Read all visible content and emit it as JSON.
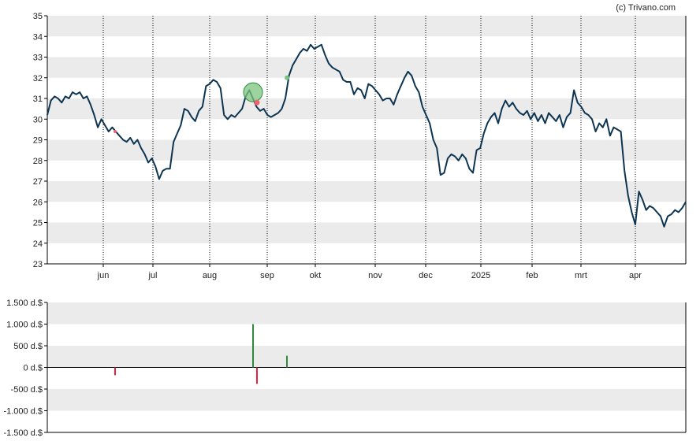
{
  "credit": "(c) Trivano.com",
  "colors": {
    "price_line": "#0d3552",
    "band": "#ebebeb",
    "axis": "#000000",
    "grid_dash": "#000000",
    "buy": "#2e8b3e",
    "sell": "#e0233f",
    "buy_marker": "#7bc47f",
    "sell_marker": "#f06070"
  },
  "chart_data": [
    {
      "type": "line",
      "title": "",
      "xlabel": "",
      "ylabel": "",
      "ylim": [
        23,
        35
      ],
      "y_ticks": [
        "23",
        "24",
        "25",
        "26",
        "27",
        "28",
        "29",
        "30",
        "31",
        "32",
        "33",
        "34",
        "35"
      ],
      "x_ticks": [
        "jun",
        "jul",
        "aug",
        "sep",
        "okt",
        "nov",
        "dec",
        "2025",
        "feb",
        "mrt",
        "apr"
      ],
      "grid": "alternating horizontal bands, dotted vertical lines at month ticks",
      "series": [
        {
          "values": [
            30.2,
            30.9,
            31.1,
            31.0,
            30.8,
            31.1,
            31.0,
            31.3,
            31.2,
            31.3,
            31.0,
            31.1,
            30.7,
            30.2,
            29.6,
            30.0,
            29.7,
            29.4,
            29.6,
            29.4,
            29.2,
            29.0,
            28.9,
            29.1,
            28.8,
            29.0,
            28.6,
            28.3,
            27.9,
            28.1,
            27.7,
            27.1,
            27.5,
            27.6,
            27.6,
            28.9,
            29.3,
            29.7,
            30.5,
            30.4,
            30.1,
            29.9,
            30.4,
            30.6,
            31.6,
            31.7,
            31.9,
            31.8,
            31.5,
            30.2,
            30.0,
            30.2,
            30.1,
            30.3,
            30.5,
            31.1,
            31.4,
            31.0,
            30.6,
            30.4,
            30.5,
            30.2,
            30.1,
            30.2,
            30.3,
            30.5,
            31.0,
            32.1,
            32.6,
            32.9,
            33.2,
            33.4,
            33.3,
            33.6,
            33.4,
            33.5,
            33.6,
            33.1,
            32.7,
            32.5,
            32.4,
            32.3,
            31.9,
            31.8,
            31.8,
            31.2,
            31.5,
            31.4,
            31.0,
            31.7,
            31.6,
            31.4,
            31.2,
            30.9,
            31.0,
            31.0,
            30.7,
            31.2,
            31.6,
            32.0,
            32.3,
            32.1,
            31.6,
            31.3,
            30.6,
            30.2,
            29.8,
            29.0,
            28.6,
            27.3,
            27.4,
            28.1,
            28.3,
            28.2,
            28.0,
            28.3,
            28.1,
            27.6,
            27.4,
            28.5,
            28.6,
            29.3,
            29.8,
            30.1,
            30.3,
            29.8,
            30.5,
            30.9,
            30.6,
            30.8,
            30.5,
            30.3,
            30.2,
            30.4,
            30.0,
            30.3,
            29.9,
            30.2,
            29.8,
            30.3,
            30.1,
            29.9,
            30.2,
            29.6,
            30.1,
            30.3,
            31.4,
            30.8,
            30.6,
            30.3,
            30.2,
            30.0,
            29.4,
            29.8,
            29.6,
            30.0,
            29.2,
            29.6,
            29.5,
            29.4,
            27.5,
            26.3,
            25.5,
            24.9,
            26.5,
            26.1,
            25.6,
            25.8,
            25.7,
            25.5,
            25.3,
            24.8,
            25.3,
            25.4,
            25.6,
            25.5,
            25.7,
            26.0
          ]
        }
      ],
      "markers": [
        {
          "kind": "buy",
          "position": "late August, around 31.2"
        },
        {
          "kind": "sell",
          "position": "late August, around 30.8"
        },
        {
          "kind": "buy",
          "position": "mid September, around 32.0"
        }
      ]
    },
    {
      "type": "bar",
      "title": "",
      "xlabel": "",
      "ylabel": "",
      "ylim": [
        -1500,
        1500
      ],
      "y_ticks": [
        "1.500 d.$",
        "1.000 d.$",
        "500 d.$",
        "0 d.$",
        "-500 d.$",
        "-1.000 d.$",
        "-1.500 d.$"
      ],
      "bars": [
        {
          "kind": "sell",
          "when": "early June",
          "value": -180
        },
        {
          "kind": "buy",
          "when": "late August",
          "value": 1000
        },
        {
          "kind": "sell",
          "when": "late August",
          "value": -380
        },
        {
          "kind": "buy",
          "when": "mid September",
          "value": 270
        }
      ]
    }
  ]
}
